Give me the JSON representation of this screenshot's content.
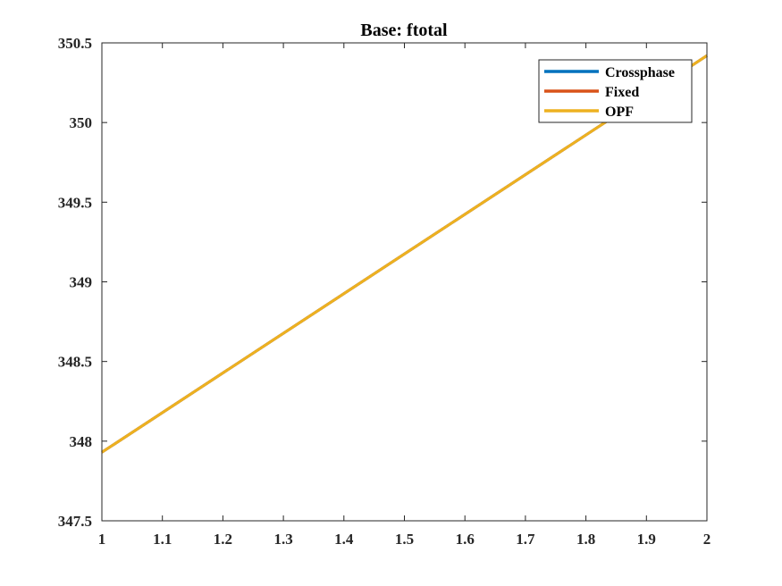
{
  "chart_data": {
    "type": "line",
    "title": "Base: ftotal",
    "xlabel": "",
    "ylabel": "",
    "xlim": [
      1,
      2
    ],
    "ylim": [
      347.5,
      350.5
    ],
    "xticks": [
      1,
      1.1,
      1.2,
      1.3,
      1.4,
      1.5,
      1.6,
      1.7,
      1.8,
      1.9,
      2
    ],
    "xtick_labels": [
      "1",
      "1.1",
      "1.2",
      "1.3",
      "1.4",
      "1.5",
      "1.6",
      "1.7",
      "1.8",
      "1.9",
      "2"
    ],
    "yticks": [
      347.5,
      348,
      348.5,
      349,
      349.5,
      350,
      350.5
    ],
    "ytick_labels": [
      "347.5",
      "348",
      "348.5",
      "349",
      "349.5",
      "350",
      "350.5"
    ],
    "grid": false,
    "legend_position": "top-right",
    "series": [
      {
        "name": "Crossphase",
        "color": "#0072BD",
        "x": [
          1,
          2
        ],
        "y": [
          347.93,
          350.42
        ]
      },
      {
        "name": "Fixed",
        "color": "#D95319",
        "x": [
          1,
          2
        ],
        "y": [
          347.93,
          350.42
        ]
      },
      {
        "name": "OPF",
        "color": "#EDB120",
        "x": [
          1,
          2
        ],
        "y": [
          347.93,
          350.42
        ]
      }
    ]
  }
}
